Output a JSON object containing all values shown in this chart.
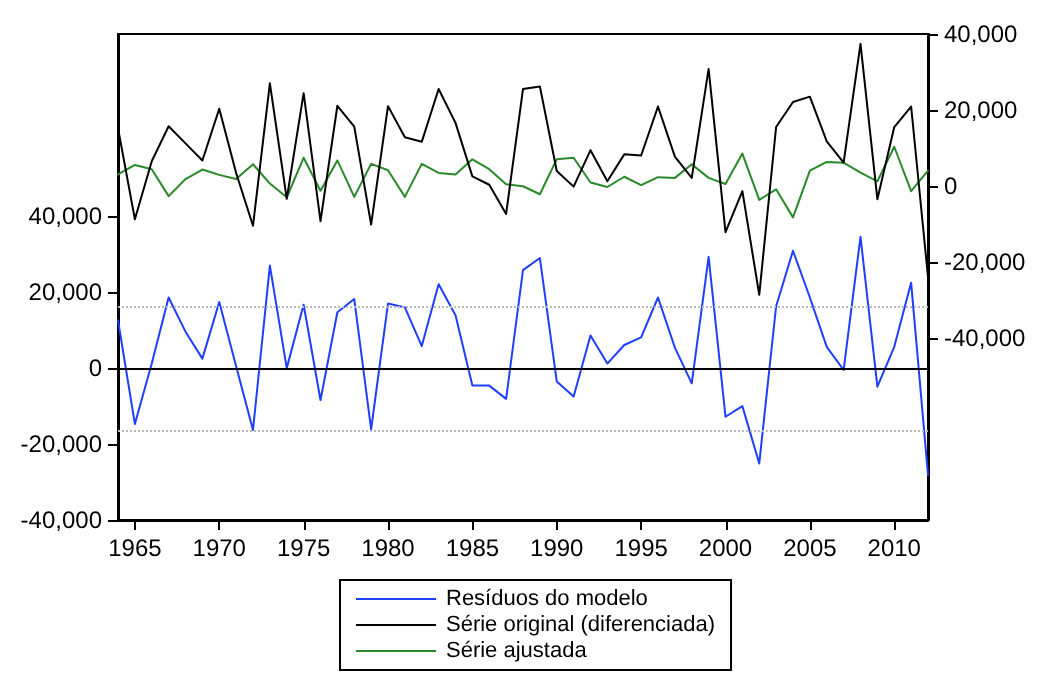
{
  "chart_data": {
    "type": "line",
    "x": [
      1964,
      1965,
      1966,
      1967,
      1968,
      1969,
      1970,
      1971,
      1972,
      1973,
      1974,
      1975,
      1976,
      1977,
      1978,
      1979,
      1980,
      1981,
      1982,
      1983,
      1984,
      1985,
      1986,
      1987,
      1988,
      1989,
      1990,
      1991,
      1992,
      1993,
      1994,
      1995,
      1996,
      1997,
      1998,
      1999,
      2000,
      2001,
      2002,
      2003,
      2004,
      2005,
      2006,
      2007,
      2008,
      2009,
      2010,
      2011,
      2012
    ],
    "series": [
      {
        "name": "Resíduos do modelo",
        "color": "#1f3fff",
        "values": [
          12600,
          -14700,
          1200,
          18600,
          9600,
          2500,
          17400,
          500,
          -16300,
          27000,
          0,
          16700,
          -8400,
          14700,
          18200,
          -16100,
          17000,
          16000,
          5800,
          22100,
          13900,
          -4600,
          -4600,
          -8100,
          25800,
          29000,
          -3500,
          -7500,
          8600,
          1200,
          6100,
          8100,
          18600,
          5400,
          -4000,
          29300,
          -12800,
          -10000,
          -25100,
          16300,
          30900,
          18600,
          5600,
          -500,
          34600,
          -4900,
          5600,
          22500,
          -28100
        ]
      },
      {
        "name": "Série original (diferenciada)",
        "color": "#000000",
        "axis": "y2",
        "values": [
          15200,
          -8800,
          6500,
          15700,
          11200,
          6700,
          20300,
          3400,
          -10500,
          27000,
          -3400,
          24400,
          -9300,
          21100,
          15600,
          -10200,
          21000,
          12800,
          11600,
          25500,
          16600,
          2500,
          300,
          -7400,
          25500,
          26200,
          3900,
          -200,
          9400,
          1200,
          8300,
          8000,
          20900,
          7700,
          2100,
          30800,
          -12200,
          -1400,
          -28700,
          15500,
          22100,
          23500,
          11700,
          6100,
          37400,
          -3500,
          15500,
          20900,
          -24000
        ]
      },
      {
        "name": "Série ajustada",
        "color": "#2a8a2a",
        "axis": "y2",
        "values": [
          3000,
          5500,
          4400,
          -2700,
          1800,
          4300,
          2900,
          1800,
          5700,
          600,
          -3000,
          7400,
          -1300,
          6700,
          -2900,
          5800,
          4100,
          -2900,
          5800,
          3400,
          3000,
          7000,
          4400,
          400,
          -100,
          -2200,
          7000,
          7400,
          900,
          -300,
          2400,
          200,
          2300,
          2100,
          5700,
          2100,
          500,
          8500,
          -3700,
          -900,
          -8300,
          4000,
          6300,
          6100,
          3500,
          1200,
          10300,
          -1400,
          4000
        ]
      }
    ],
    "xlim": [
      1964,
      2012
    ],
    "xticks": [
      1965,
      1970,
      1975,
      1980,
      1985,
      1990,
      1995,
      2000,
      2005,
      2010
    ],
    "ylim": [
      -40000,
      88000
    ],
    "yticks": [
      {
        "value": -40000,
        "label": "-40,000"
      },
      {
        "value": -20000,
        "label": "-20,000"
      },
      0,
      {
        "value": 20000,
        "label": "20,000"
      },
      {
        "value": 40000,
        "label": "40,000"
      }
    ],
    "y2lim": [
      -88000,
      40000
    ],
    "y2ticks": [
      {
        "value": -40000,
        "label": "-40,000"
      },
      {
        "value": -20000,
        "label": "-20,000"
      },
      0,
      {
        "value": 20000,
        "label": "20,000"
      },
      {
        "value": 40000,
        "label": "40,000"
      }
    ],
    "ref_lines": [
      {
        "axis": "y",
        "value": 0,
        "color": "#000000",
        "line_style": "solid"
      },
      {
        "axis": "y",
        "value": 16300,
        "color": "#bbbbbb",
        "line_style": "dotted"
      },
      {
        "axis": "y",
        "value": -16300,
        "color": "#bbbbbb",
        "line_style": "dotted"
      }
    ],
    "grid": false,
    "legend": "bottom",
    "marker": "none",
    "line_style": "solid"
  }
}
